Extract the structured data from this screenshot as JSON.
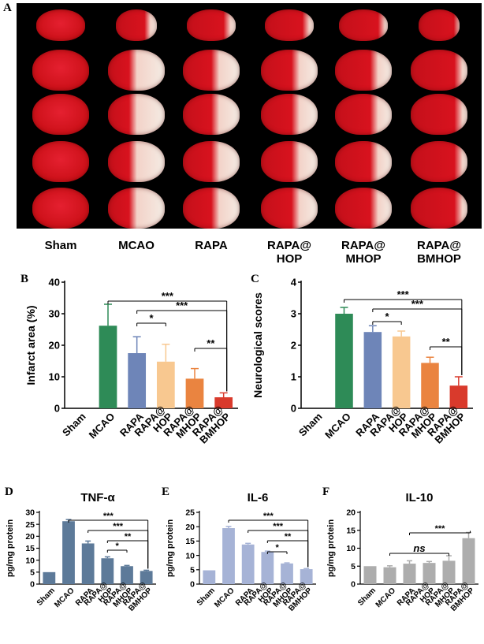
{
  "panels": {
    "A": "A",
    "B": "B",
    "C": "C",
    "D": "D",
    "E": "E",
    "F": "F"
  },
  "brain_image": {
    "rows": 5,
    "columns": [
      "Sham",
      "MCAO",
      "RAPA",
      "RAPA@\nHOP",
      "RAPA@\nMHOP",
      "RAPA@\nBMHOP"
    ],
    "label_lines": [
      [
        "Sham"
      ],
      [
        "MCAO"
      ],
      [
        "RAPA"
      ],
      [
        "RAPA@",
        "HOP"
      ],
      [
        "RAPA@",
        "MHOP"
      ],
      [
        "RAPA@",
        "BMHOP"
      ]
    ]
  },
  "colors": {
    "green": "#2e8b57",
    "blue": "#6e85b8",
    "peach": "#f8c890",
    "orange": "#ea8440",
    "red": "#d93a2c",
    "steel": "#5d7a99",
    "lavender": "#a6b3d6",
    "gray": "#adadad"
  },
  "chart_data": [
    {
      "id": "B",
      "type": "bar",
      "title": "",
      "categories": [
        "Sham",
        "MCAO",
        "RAPA",
        "RAPA@\nHOP",
        "RAPA@\nMHOP",
        "RAPA@\nBMHOP"
      ],
      "values": [
        0,
        26.2,
        17.5,
        14.8,
        9.4,
        3.5
      ],
      "errors": [
        0,
        6.8,
        5.2,
        5.5,
        3.2,
        1.4
      ],
      "bar_colors": [
        "#2e8b57",
        "#2e8b57",
        "#6e85b8",
        "#f8c890",
        "#ea8440",
        "#d93a2c"
      ],
      "ylabel": "Infarct area (%)",
      "ylim": [
        0,
        40
      ],
      "yticks": [
        0,
        10,
        20,
        30,
        40
      ],
      "significance": [
        {
          "from": 1,
          "to": 5,
          "label": "***"
        },
        {
          "from": 2,
          "to": 5,
          "label": "***"
        },
        {
          "from": 2,
          "to": 3,
          "label": "*"
        },
        {
          "from": 4,
          "to": 5,
          "label": "**"
        }
      ]
    },
    {
      "id": "C",
      "type": "bar",
      "title": "",
      "categories": [
        "Sham",
        "MCAO",
        "RAPA",
        "RAPA@\nHOP",
        "RAPA@\nMHOP",
        "RAPA@\nBMHOP"
      ],
      "values": [
        0,
        3.0,
        2.42,
        2.28,
        1.44,
        0.72
      ],
      "errors": [
        0,
        0.2,
        0.2,
        0.17,
        0.18,
        0.28
      ],
      "bar_colors": [
        "#2e8b57",
        "#2e8b57",
        "#6e85b8",
        "#f8c890",
        "#ea8440",
        "#d93a2c"
      ],
      "ylabel": "Neurological scores",
      "ylim": [
        0,
        4
      ],
      "yticks": [
        0,
        1,
        2,
        3,
        4
      ],
      "significance": [
        {
          "from": 1,
          "to": 5,
          "label": "***"
        },
        {
          "from": 2,
          "to": 5,
          "label": "***"
        },
        {
          "from": 2,
          "to": 3,
          "label": "*"
        },
        {
          "from": 4,
          "to": 5,
          "label": "**"
        }
      ]
    },
    {
      "id": "D",
      "type": "bar",
      "title": "TNF-α",
      "categories": [
        "Sham",
        "MCAO",
        "RAPA",
        "RAPA@\nHOP",
        "RAPA@\nMHOP",
        "RAPA@\nBMHOP"
      ],
      "values": [
        5.0,
        26.3,
        17.0,
        10.8,
        7.5,
        5.5
      ],
      "errors": [
        0,
        0.7,
        1.0,
        0.6,
        0.3,
        0.3
      ],
      "bar_colors": [
        "#5d7a99",
        "#5d7a99",
        "#5d7a99",
        "#5d7a99",
        "#5d7a99",
        "#5d7a99"
      ],
      "ylabel": "pg/mg protein",
      "ylim": [
        0,
        30
      ],
      "yticks": [
        0,
        5,
        10,
        15,
        20,
        25,
        30
      ],
      "significance": [
        {
          "from": 1,
          "to": 5,
          "label": "***"
        },
        {
          "from": 2,
          "to": 5,
          "label": "***"
        },
        {
          "from": 3,
          "to": 5,
          "label": "**"
        },
        {
          "from": 3,
          "to": 4,
          "label": "*"
        }
      ]
    },
    {
      "id": "E",
      "type": "bar",
      "title": "IL-6",
      "categories": [
        "Sham",
        "MCAO",
        "RAPA",
        "RAPA@\nHOP",
        "RAPA@\nMHOP",
        "RAPA@\nBMHOP"
      ],
      "values": [
        4.8,
        19.5,
        13.8,
        11.2,
        7.2,
        5.2
      ],
      "errors": [
        0,
        0.6,
        0.4,
        0.3,
        0.2,
        0.2
      ],
      "bar_colors": [
        "#a6b3d6",
        "#a6b3d6",
        "#a6b3d6",
        "#a6b3d6",
        "#a6b3d6",
        "#a6b3d6"
      ],
      "ylabel": "pg/mg protein",
      "ylim": [
        0,
        25
      ],
      "yticks": [
        0,
        5,
        10,
        15,
        20,
        25
      ],
      "significance": [
        {
          "from": 1,
          "to": 5,
          "label": "***"
        },
        {
          "from": 2,
          "to": 5,
          "label": "***"
        },
        {
          "from": 3,
          "to": 5,
          "label": "**"
        },
        {
          "from": 3,
          "to": 4,
          "label": "*"
        }
      ]
    },
    {
      "id": "F",
      "type": "bar",
      "title": "IL-10",
      "categories": [
        "Sham",
        "MCAO",
        "RAPA",
        "RAPA@\nHOP",
        "RAPA@\nMHOP",
        "RAPA@\nBMHOP"
      ],
      "values": [
        5.0,
        4.7,
        5.7,
        5.9,
        6.5,
        12.8
      ],
      "errors": [
        0,
        0.4,
        0.8,
        0.4,
        1.4,
        1.6
      ],
      "bar_colors": [
        "#adadad",
        "#adadad",
        "#adadad",
        "#adadad",
        "#adadad",
        "#adadad"
      ],
      "ylabel": "pg/mg protein",
      "ylim": [
        0,
        20
      ],
      "yticks": [
        0,
        5,
        10,
        15,
        20
      ],
      "significance": [
        {
          "from": 1,
          "to": 4,
          "label": "ns",
          "italic": true
        },
        {
          "from": 2,
          "to": 5,
          "label": "***"
        }
      ]
    }
  ]
}
